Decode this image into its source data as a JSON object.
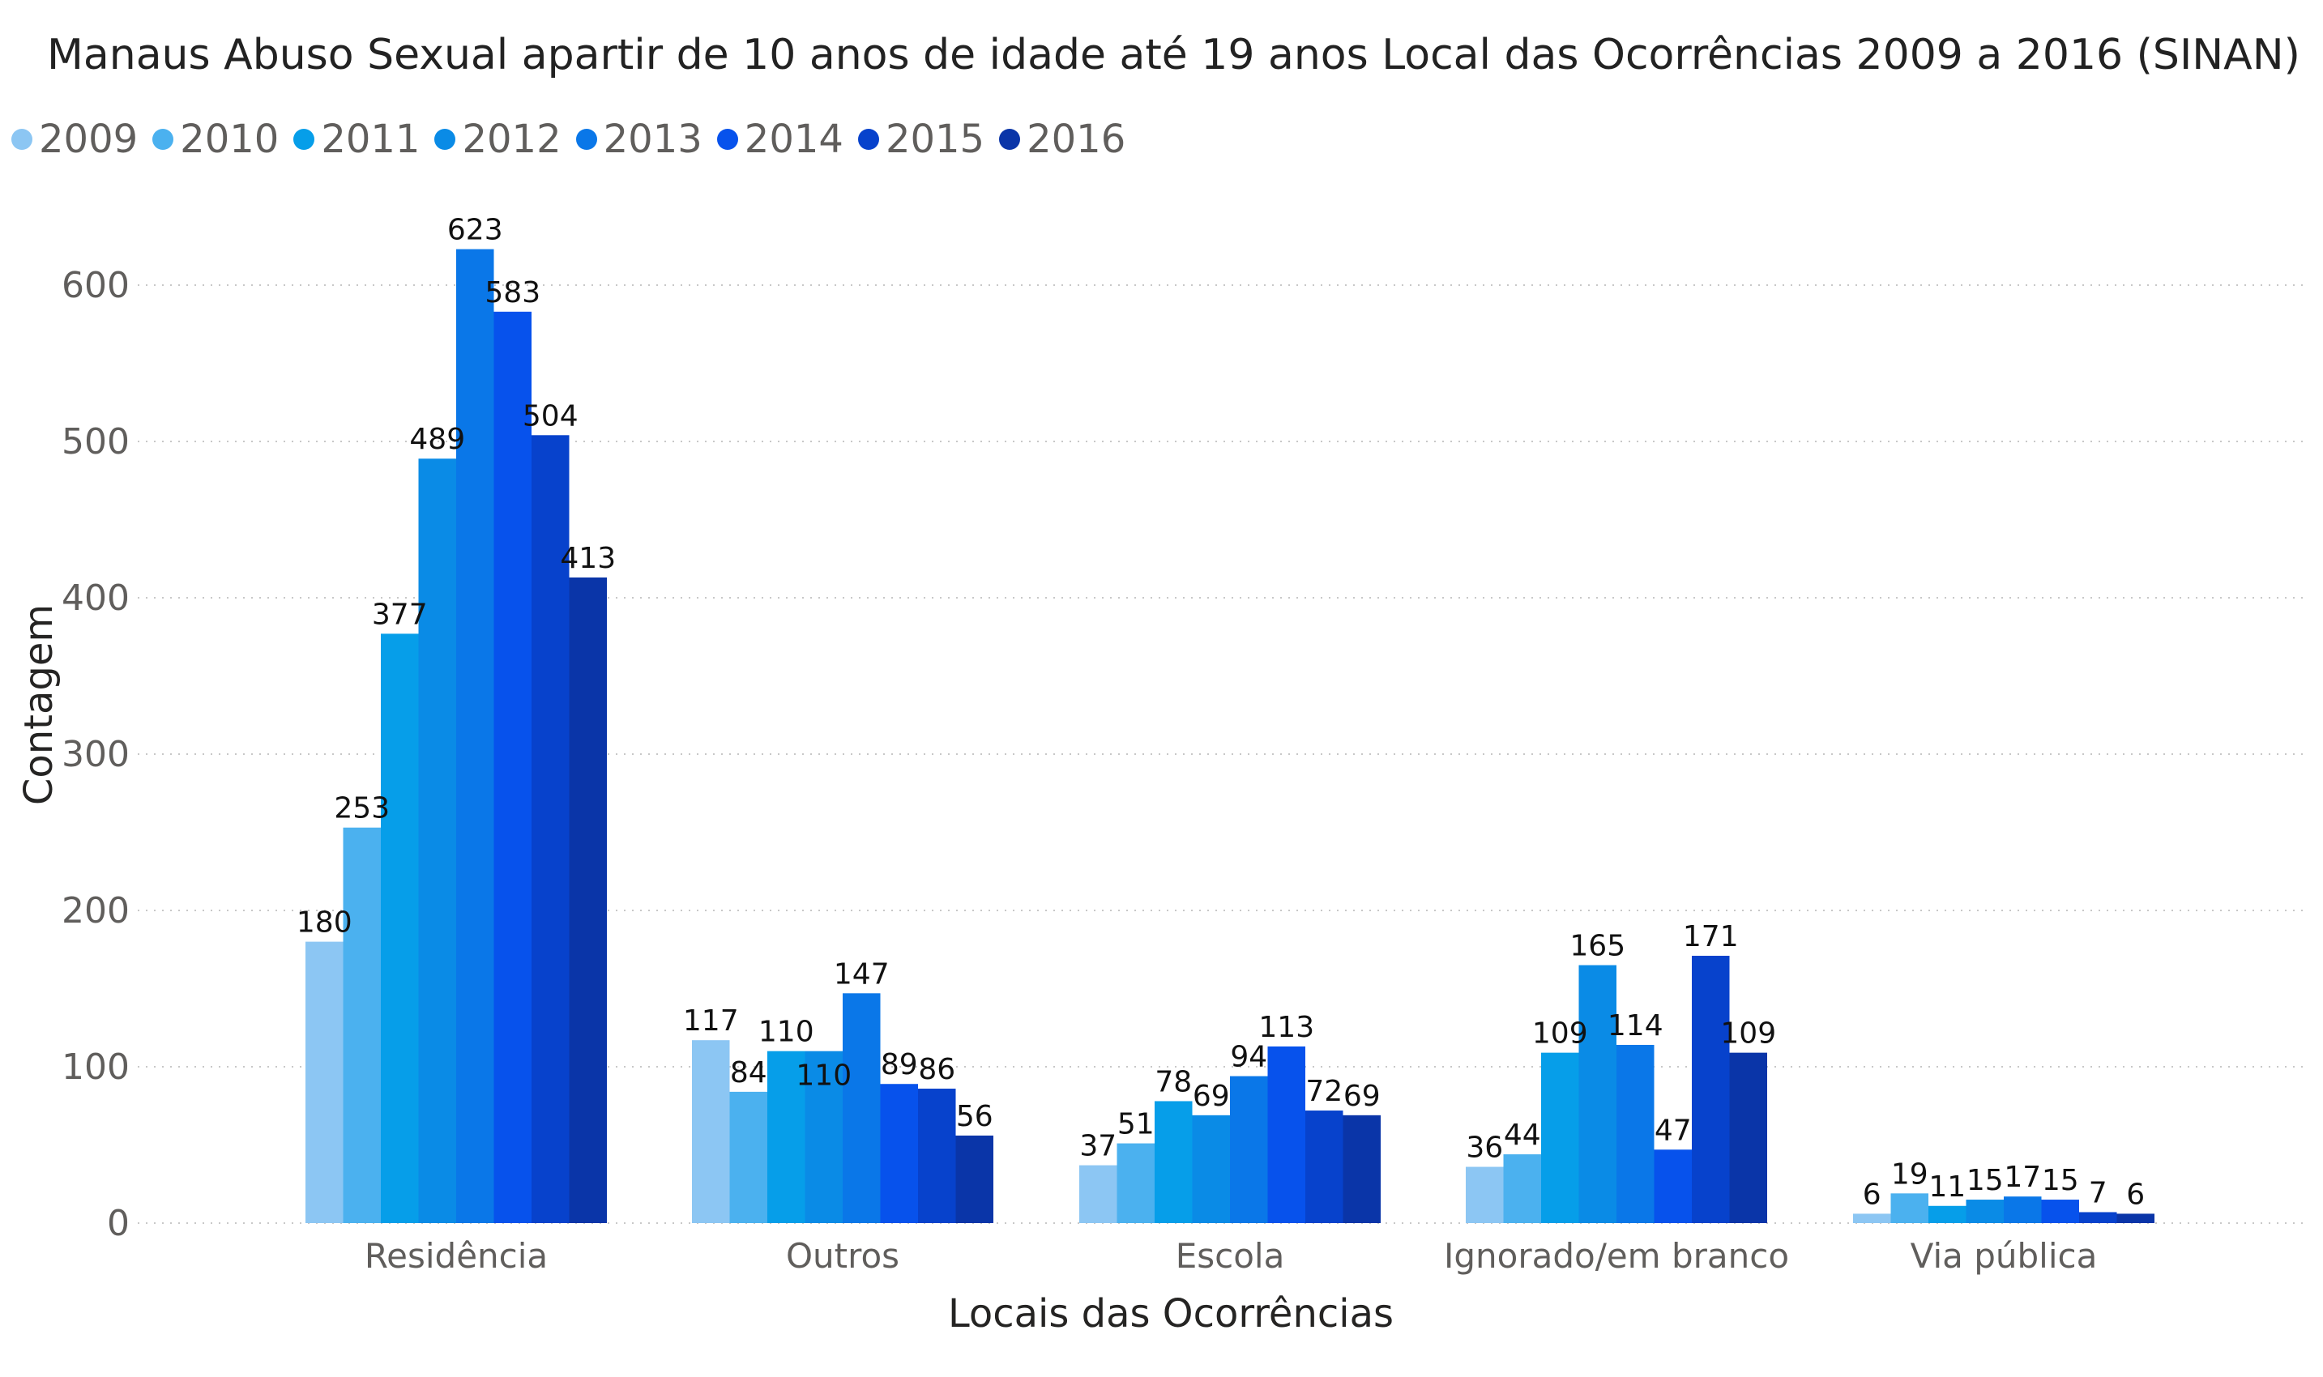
{
  "chart_data": {
    "type": "bar",
    "title": "Manaus Abuso Sexual apartir de 10 anos de idade até 19 anos Local das Ocorrências 2009 a 2016 (SINAN)",
    "xlabel": "Locais das Ocorrências",
    "ylabel": "Contagem",
    "ylim": [
      0,
      650
    ],
    "yticks": [
      0,
      100,
      200,
      300,
      400,
      500,
      600
    ],
    "grid": true,
    "legend_position": "top-left",
    "categories": [
      "Residência",
      "Outros",
      "Escola",
      "Ignorado/em branco",
      "Via pública"
    ],
    "series": [
      {
        "name": "2009",
        "color": "#8cc6f3",
        "values": [
          180,
          117,
          37,
          36,
          6
        ]
      },
      {
        "name": "2010",
        "color": "#4bb1ef",
        "values": [
          253,
          84,
          51,
          44,
          19
        ]
      },
      {
        "name": "2011",
        "color": "#069ee9",
        "values": [
          377,
          110,
          78,
          109,
          11
        ]
      },
      {
        "name": "2012",
        "color": "#0a8be6",
        "values": [
          489,
          110,
          69,
          165,
          15
        ]
      },
      {
        "name": "2013",
        "color": "#0a77e8",
        "values": [
          623,
          147,
          94,
          114,
          17
        ]
      },
      {
        "name": "2014",
        "color": "#0752ec",
        "values": [
          583,
          89,
          113,
          47,
          15
        ]
      },
      {
        "name": "2015",
        "color": "#0742cc",
        "values": [
          504,
          86,
          72,
          171,
          7
        ]
      },
      {
        "name": "2016",
        "color": "#0a35a8",
        "values": [
          413,
          56,
          69,
          109,
          6
        ]
      }
    ]
  }
}
